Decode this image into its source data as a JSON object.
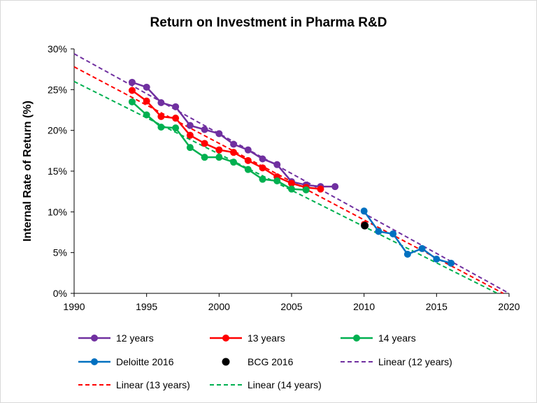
{
  "chart_data": {
    "type": "line",
    "title": "Return on Investment in Pharma R&D",
    "xlabel": "",
    "ylabel": "Internal Rate of Return (%)",
    "xlim": [
      1990,
      2020
    ],
    "ylim": [
      0,
      30
    ],
    "x_ticks": [
      "1990",
      "1995",
      "2000",
      "2005",
      "2010",
      "2015",
      "2020"
    ],
    "y_ticks": [
      "0%",
      "5%",
      "10%",
      "15%",
      "20%",
      "25%",
      "30%"
    ],
    "grid": false,
    "legend_position": "bottom",
    "series": [
      {
        "name": "12 years",
        "kind": "line-marker",
        "color": "#7030a0",
        "x": [
          1994,
          1995,
          1996,
          1997,
          1998,
          1999,
          2000,
          2001,
          2002,
          2003,
          2004,
          2005,
          2006,
          2007,
          2008
        ],
        "y": [
          25.9,
          25.3,
          23.4,
          22.9,
          20.6,
          20.1,
          19.6,
          18.3,
          17.6,
          16.5,
          15.8,
          13.7,
          13.3,
          13.1,
          13.1
        ]
      },
      {
        "name": "13 years",
        "kind": "line-marker",
        "color": "#ff0000",
        "x": [
          1994,
          1995,
          1996,
          1997,
          1998,
          1999,
          2000,
          2001,
          2002,
          2003,
          2004,
          2005,
          2006,
          2007
        ],
        "y": [
          24.9,
          23.6,
          21.7,
          21.5,
          19.4,
          18.4,
          17.6,
          17.3,
          16.3,
          15.4,
          14.3,
          13.5,
          13.0,
          12.8
        ]
      },
      {
        "name": "14 years",
        "kind": "line-marker",
        "color": "#00b050",
        "x": [
          1994,
          1995,
          1996,
          1997,
          1998,
          1999,
          2000,
          2001,
          2002,
          2003,
          2004,
          2005,
          2006
        ],
        "y": [
          23.5,
          21.9,
          20.4,
          20.3,
          17.9,
          16.7,
          16.7,
          16.1,
          15.2,
          14.0,
          13.8,
          12.8,
          12.7
        ]
      },
      {
        "name": "Deloitte 2016",
        "kind": "line-marker",
        "color": "#0070c0",
        "x": [
          2010,
          2011,
          2012,
          2013,
          2014,
          2015,
          2016
        ],
        "y": [
          10.1,
          7.6,
          7.3,
          4.8,
          5.5,
          4.2,
          3.7
        ]
      },
      {
        "name": "BCG 2016",
        "kind": "marker",
        "color": "#000000",
        "x": [
          2010
        ],
        "y": [
          8.4
        ]
      },
      {
        "name": "Linear (12 years)",
        "kind": "dashed",
        "color": "#7030a0",
        "x": [
          1990,
          2020
        ],
        "y": [
          29.4,
          0
        ]
      },
      {
        "name": "Linear (13 years)",
        "kind": "dashed",
        "color": "#ff0000",
        "x": [
          1990,
          2019.6
        ],
        "y": [
          27.8,
          0
        ]
      },
      {
        "name": "Linear (14 years)",
        "kind": "dashed",
        "color": "#00b050",
        "x": [
          1990,
          2019.2
        ],
        "y": [
          26.0,
          0
        ]
      }
    ],
    "extra_markers": [
      {
        "series": "13 years",
        "color": "#ff0000",
        "x": 2010,
        "y": 8.5
      },
      {
        "series": "14 years",
        "color": "#00b050",
        "x": 2010,
        "y": 8.3
      }
    ]
  }
}
